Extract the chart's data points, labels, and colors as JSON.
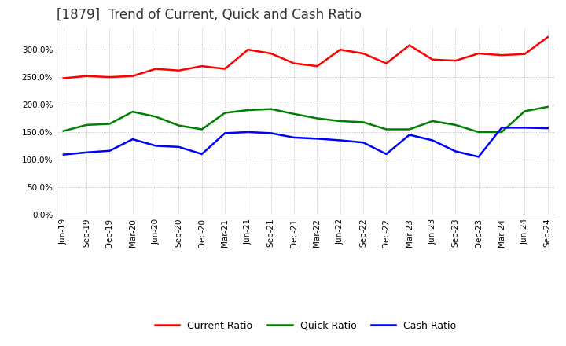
{
  "title": "[1879]  Trend of Current, Quick and Cash Ratio",
  "x_labels": [
    "Jun-19",
    "Sep-19",
    "Dec-19",
    "Mar-20",
    "Jun-20",
    "Sep-20",
    "Dec-20",
    "Mar-21",
    "Jun-21",
    "Sep-21",
    "Dec-21",
    "Mar-22",
    "Jun-22",
    "Sep-22",
    "Dec-22",
    "Mar-23",
    "Jun-23",
    "Sep-23",
    "Dec-23",
    "Mar-24",
    "Jun-24",
    "Sep-24"
  ],
  "current_ratio": [
    248,
    252,
    250,
    252,
    265,
    262,
    270,
    265,
    300,
    293,
    275,
    270,
    300,
    293,
    275,
    308,
    282,
    280,
    293,
    290,
    292,
    323
  ],
  "quick_ratio": [
    152,
    163,
    165,
    187,
    178,
    162,
    155,
    185,
    190,
    192,
    183,
    175,
    170,
    168,
    155,
    155,
    170,
    163,
    150,
    150,
    188,
    196
  ],
  "cash_ratio": [
    109,
    113,
    116,
    137,
    125,
    123,
    110,
    148,
    150,
    148,
    140,
    138,
    135,
    131,
    110,
    145,
    135,
    115,
    105,
    158,
    158,
    157
  ],
  "current_color": "#FF0000",
  "quick_color": "#008000",
  "cash_color": "#0000FF",
  "line_width": 1.8,
  "ylim": [
    0,
    340
  ],
  "yticks": [
    0,
    50,
    100,
    150,
    200,
    250,
    300
  ],
  "background_color": "#ffffff",
  "grid_color": "#999999",
  "title_fontsize": 12,
  "tick_fontsize": 7.5,
  "legend_fontsize": 9
}
